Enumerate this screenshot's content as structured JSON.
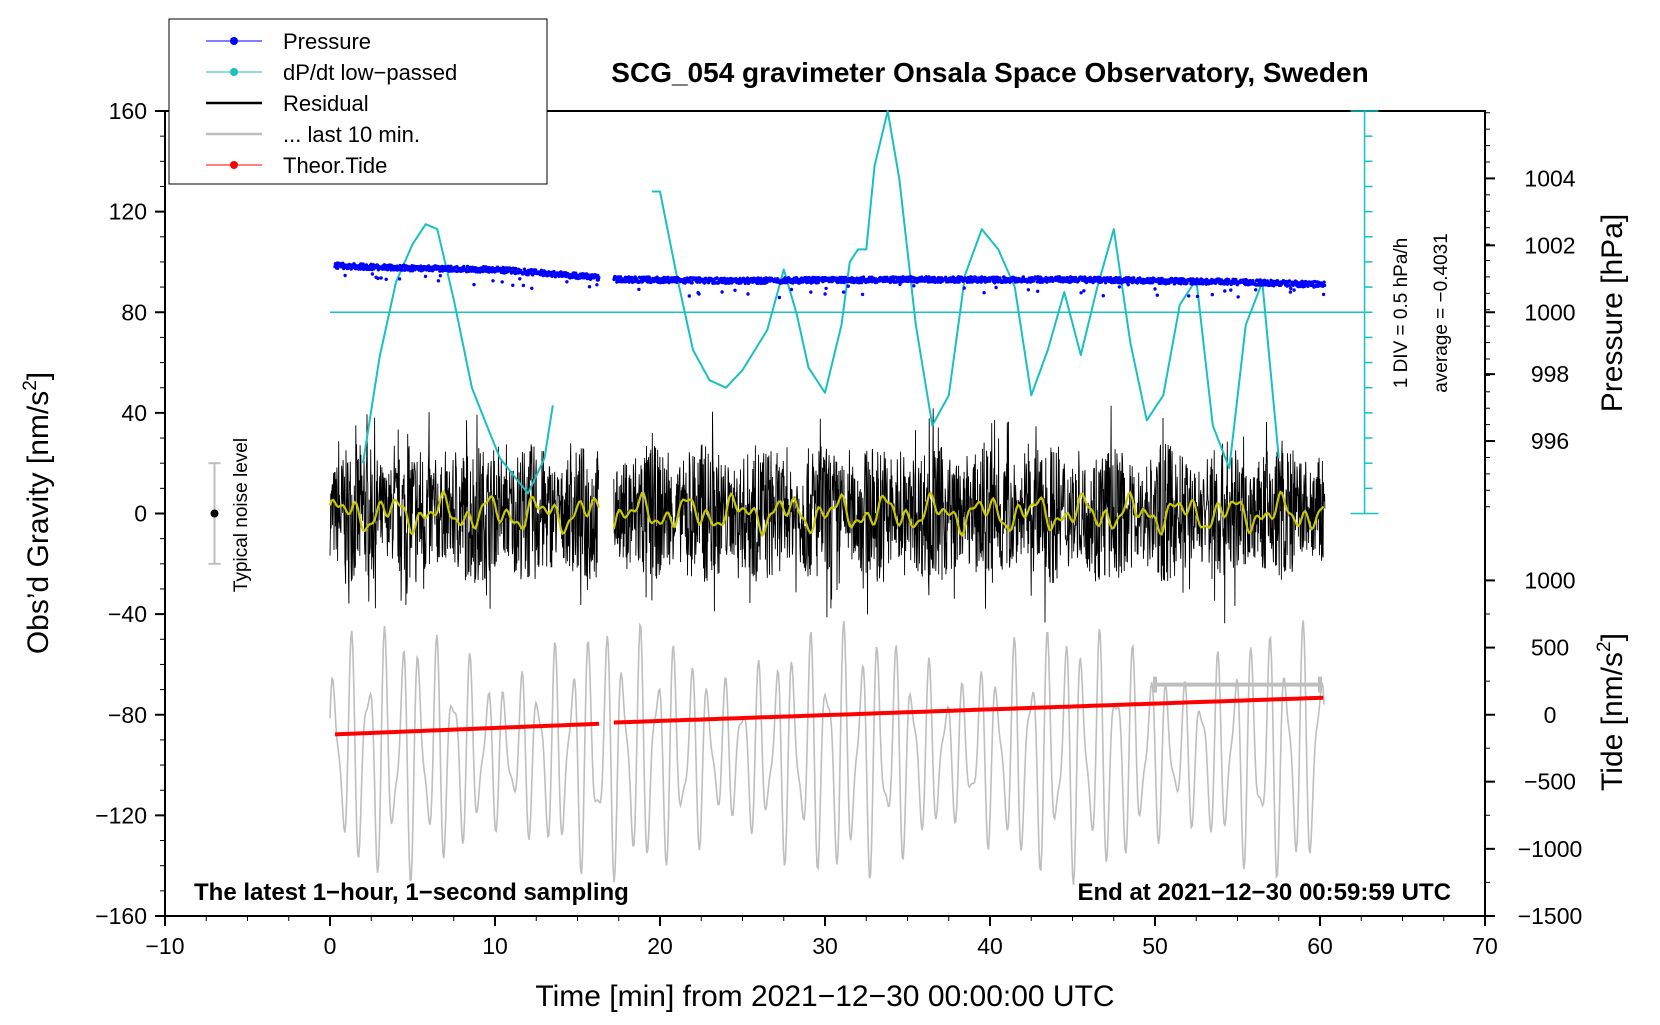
{
  "chart_data": {
    "type": "line",
    "title": "SCG_054 gravimeter Onsala Space Observatory, Sweden",
    "xlabel": "Time [min] from 2021−12−30 00:00:00 UTC",
    "ylabel_left_main": "Obs’d Gravity [nm/s",
    "ylabel_left_sup": "2",
    "ylabel_left_end": "]",
    "ylabel_right_top": "Pressure [hPa]",
    "ylabel_right_bottom_main": "Tide [nm/s",
    "ylabel_right_bottom_sup": "2",
    "ylabel_right_bottom_end": "]",
    "xlim": [
      -10,
      70
    ],
    "ylim": [
      -160,
      160
    ],
    "xticks": [
      -10,
      0,
      10,
      20,
      30,
      40,
      50,
      60,
      70
    ],
    "xtick_labels": [
      "−10",
      "0",
      "10",
      "20",
      "30",
      "40",
      "50",
      "60",
      "70"
    ],
    "yticks": [
      -160,
      -120,
      -80,
      -40,
      0,
      40,
      80,
      120,
      160
    ],
    "ytick_labels": [
      "−160",
      "−120",
      "−80",
      "−40",
      "0",
      "40",
      "80",
      "120",
      "160"
    ],
    "pressure_axis": {
      "ticks": [
        996,
        998,
        1000,
        1002,
        1004
      ],
      "tick_labels": [
        "996",
        "998",
        "1000",
        "1002",
        "1004"
      ],
      "gravity_equiv": [
        28.8,
        55.4,
        80.0,
        106.6,
        133.2
      ]
    },
    "tide_axis": {
      "ticks": [
        -1500,
        -1000,
        -500,
        0,
        500,
        1000
      ],
      "tick_labels": [
        "−1500",
        "−1000",
        "−500",
        "0",
        "500",
        "1000"
      ],
      "gravity_equiv": [
        -160,
        -133.3,
        -106.6,
        -80,
        -53.3,
        -26.6
      ]
    },
    "legend": [
      {
        "label": "Pressure",
        "color": "#0000ff",
        "marker": "dot"
      },
      {
        "label": "dP/dt low−passed",
        "color": "#19c0c0",
        "marker": "dot"
      },
      {
        "label": "Residual",
        "color": "#000000",
        "marker": "none"
      },
      {
        "label": "... last 10 min.",
        "color": "#bebebe",
        "marker": "none"
      },
      {
        "label": "Theor.Tide",
        "color": "#ff0000",
        "marker": "dot"
      }
    ],
    "legend_position": "top-left",
    "noise_label": "Typical noise level",
    "noise_bar": {
      "x": -7,
      "center": 0,
      "half_range": 20
    },
    "dpdt_scale_text": "1 DIV = 0.5 hPa/h",
    "dpdt_average_text": "average = −0.4031",
    "dpdt_reference_level": 80,
    "footer_left": "The latest 1−hour, 1−second sampling",
    "footer_right": "End at 2021−12−30 00:59:59 UTC",
    "data_gap": [
      16.3,
      17.2
    ],
    "series": [
      {
        "name": "Pressure (gravity-axis equivalent)",
        "color": "#0000ff",
        "x": [
          0.3,
          5,
          10,
          16,
          17.5,
          25,
          35,
          45,
          55,
          60.3
        ],
        "y": [
          98.5,
          97.5,
          97,
          94,
          93,
          92.5,
          93,
          93,
          92,
          91
        ]
      },
      {
        "name": "dP/dt low-passed (gravity-axis equivalent)",
        "color": "#19c0c0",
        "x": [
          2,
          3,
          4,
          5,
          5.8,
          6.5,
          7.5,
          8.6,
          9.5,
          10.3,
          11.5,
          12,
          13,
          13.5,
          19.5,
          20,
          21,
          22,
          23,
          24,
          25,
          26.5,
          27.5,
          28.3,
          29,
          30,
          31,
          31.5,
          32,
          32.5,
          33,
          33.8,
          34.5,
          35.5,
          36.5,
          37.5,
          38.5,
          39.5,
          40.5,
          41.5,
          42.5,
          43.5,
          44.5,
          45.5,
          46.5,
          47.5,
          48.5,
          49.5,
          50.5,
          51.5,
          52.5,
          53.5,
          54.5,
          55.5,
          56.5,
          57,
          57.5
        ],
        "y": [
          20,
          62,
          92,
          107,
          115,
          113,
          85,
          50,
          35,
          22,
          12,
          8,
          22,
          43,
          128,
          128,
          95,
          65,
          53,
          50,
          57,
          73,
          97,
          79,
          58,
          48,
          75,
          100,
          105,
          105,
          138,
          160,
          133,
          75,
          35,
          47,
          95,
          113,
          105,
          90,
          47,
          65,
          88,
          63,
          90,
          113,
          68,
          37,
          47,
          83,
          93,
          35,
          18,
          75,
          92,
          57,
          22
        ]
      },
      {
        "name": "Residual",
        "color": "#000000",
        "x": [
          0,
          10,
          16.3,
          17.2,
          30,
          45,
          60.3
        ],
        "y": [
          0,
          0,
          0,
          0,
          0,
          0,
          0
        ],
        "amplitude_nm_s2": 28
      },
      {
        "name": "Residual smoothed",
        "color": "#c8c800",
        "x": [
          0,
          16.3,
          17.2,
          60.3
        ],
        "y": [
          0,
          0,
          0,
          0
        ]
      },
      {
        "name": "... last 10 min. (offset -95)",
        "color": "#bebebe",
        "x": [
          0,
          10,
          20,
          30,
          40,
          50,
          60
        ],
        "y": [
          -95,
          -95,
          -95,
          -95,
          -95,
          -95,
          -95
        ],
        "amplitude_nm_s2": 48
      },
      {
        "name": "Theor.Tide (gravity-axis equivalent)",
        "color": "#ff0000",
        "x": [
          0.3,
          16.3,
          17.2,
          60.3
        ],
        "y": [
          -87.8,
          -83.6,
          -83.1,
          -73.2
        ]
      }
    ],
    "last10_bracket": {
      "x_start": 50,
      "x_end": 60,
      "y": -68
    }
  }
}
